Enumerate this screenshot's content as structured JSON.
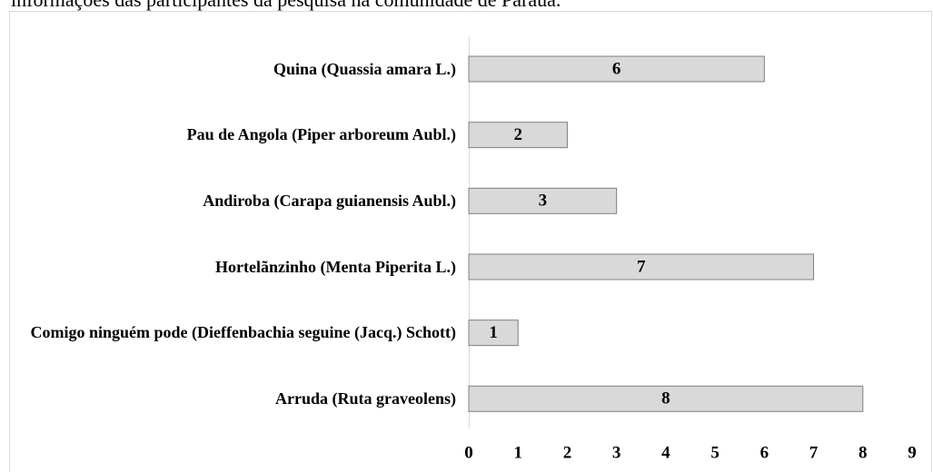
{
  "caption": "informações das participantes da pesquisa na comunidade de Paraúa.",
  "chart_data": {
    "type": "hbar",
    "categories": [
      "Quina (Quassia amara L.)",
      "Pau de Angola (Piper arboreum Aubl.)",
      "Andiroba (Carapa guianensis Aubl.)",
      "Hortelãnzinho (Menta Piperita L.)",
      "Comigo ninguém pode (Dieffenbachia seguine (Jacq.) Schott)",
      "Arruda (Ruta graveolens)"
    ],
    "values": [
      6,
      2,
      3,
      7,
      1,
      8
    ],
    "color": "#d9d9d9",
    "xlim": [
      0,
      9
    ],
    "xticks": [
      0,
      1,
      2,
      3,
      4,
      5,
      6,
      7,
      8,
      9
    ],
    "grid": false
  }
}
